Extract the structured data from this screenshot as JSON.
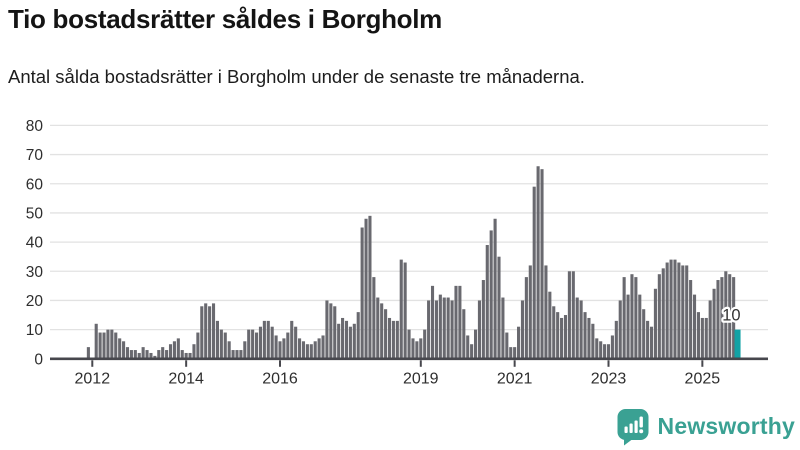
{
  "header": {
    "title": "Tio bostadsrätter såldes i Borgholm",
    "subtitle": "Antal sålda bostadsrätter i Borgholm under de senaste tre månaderna."
  },
  "footer": {
    "brand": "Newsworthy",
    "logo_icon": "bar-chart-exclamation-bubble-icon"
  },
  "colors": {
    "bar": "#69696f",
    "highlight": "#12a2a5",
    "grid": "#e2e2e2",
    "axis": "#47474d",
    "tick_label": "#2e2e2e",
    "annotation_text": "#333333",
    "annotation_halo": "#ffffff",
    "brand_teal": "#3aa193"
  },
  "chart_data": {
    "type": "bar",
    "title": "Tio bostadsrätter såldes i Borgholm",
    "subtitle": "Antal sålda bostadsrätter i Borgholm under de senaste tre månaderna.",
    "xlabel": "",
    "ylabel": "",
    "ylim": [
      0,
      80
    ],
    "grid": true,
    "y_ticks": [
      0,
      10,
      20,
      30,
      40,
      50,
      60,
      70,
      80
    ],
    "x_tick_years": [
      "2012",
      "2014",
      "2016",
      "2019",
      "2021",
      "2023",
      "2025"
    ],
    "frequency": "monthly",
    "start_month": "2011-12",
    "end_month": "2025-10",
    "values": [
      4,
      0,
      12,
      9,
      9,
      10,
      10,
      9,
      7,
      6,
      4,
      3,
      3,
      2,
      4,
      3,
      2,
      1,
      3,
      4,
      3,
      5,
      6,
      7,
      3,
      2,
      2,
      5,
      9,
      18,
      19,
      18,
      19,
      13,
      10,
      9,
      6,
      3,
      3,
      3,
      6,
      10,
      10,
      9,
      11,
      13,
      13,
      11,
      8,
      6,
      7,
      9,
      13,
      11,
      7,
      6,
      5,
      5,
      6,
      7,
      8,
      20,
      19,
      18,
      12,
      14,
      13,
      11,
      12,
      16,
      45,
      48,
      49,
      28,
      21,
      19,
      17,
      14,
      13,
      13,
      34,
      33,
      10,
      7,
      6,
      7,
      10,
      20,
      25,
      20,
      22,
      21,
      21,
      20,
      25,
      25,
      17,
      8,
      5,
      10,
      20,
      27,
      39,
      44,
      48,
      35,
      21,
      9,
      4,
      4,
      11,
      20,
      28,
      32,
      59,
      66,
      65,
      32,
      23,
      18,
      16,
      14,
      15,
      30,
      30,
      21,
      20,
      16,
      14,
      12,
      7,
      6,
      5,
      5,
      8,
      13,
      20,
      28,
      22,
      29,
      28,
      22,
      17,
      13,
      11,
      24,
      29,
      31,
      33,
      34,
      34,
      33,
      32,
      32,
      27,
      22,
      16,
      14,
      14,
      20,
      24,
      27,
      28,
      30,
      29,
      28,
      10
    ],
    "highlight_last_bar": true,
    "annotation": {
      "label": "10",
      "target": "last-bar"
    }
  }
}
